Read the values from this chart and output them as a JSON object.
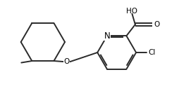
{
  "background": "#ffffff",
  "line_color": "#2a2a2a",
  "line_width": 1.4,
  "font_size": 7.5,
  "text_color": "#000000",
  "fig_width": 2.54,
  "fig_height": 1.5,
  "dpi": 100,
  "xlim": [
    0,
    10
  ],
  "ylim": [
    0,
    5.9
  ]
}
